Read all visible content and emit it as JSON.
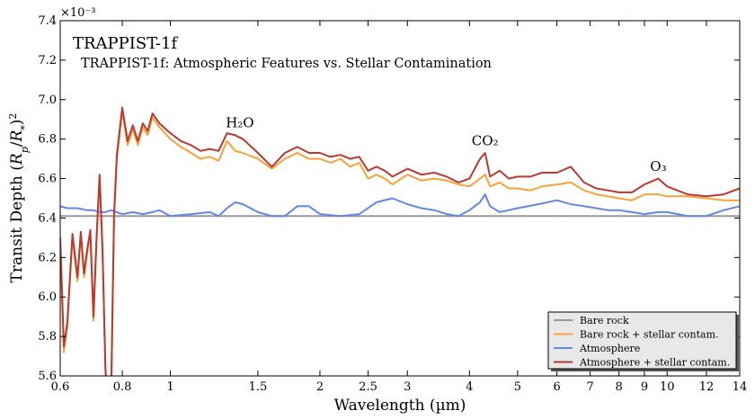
{
  "chart_data": {
    "type": "line",
    "title": "TRAPPIST-1f",
    "subtitle": "TRAPPIST-1f: Atmospheric Features vs. Stellar Contamination",
    "xlabel": "Wavelength (µm)",
    "ylabel": "Transit Depth (R_p/R_*)^2",
    "y_multiplier": "×10⁻³",
    "x_scale": "log",
    "xlim": [
      0.6,
      14
    ],
    "ylim": [
      5.6,
      7.4
    ],
    "x_ticks": [
      0.6,
      0.8,
      1,
      1.5,
      2,
      2.5,
      3,
      4,
      5,
      6,
      7,
      8,
      9,
      10,
      12,
      14
    ],
    "x_tick_labels": [
      "0.6",
      "0.8",
      "1",
      "1.5",
      "2",
      "2.5",
      "3",
      "4",
      "5",
      "6",
      "7",
      "8",
      "9",
      "10",
      "12",
      "14"
    ],
    "y_ticks": [
      5.6,
      5.8,
      6.0,
      6.2,
      6.4,
      6.6,
      6.8,
      7.0,
      7.2,
      7.4
    ],
    "y_tick_labels": [
      "5.6",
      "5.8",
      "6.0",
      "6.2",
      "6.4",
      "6.6",
      "6.8",
      "7.0",
      "7.2",
      "7.4"
    ],
    "grid": false,
    "legend_position": "bottom-right",
    "annotations": [
      {
        "label": "H₂O",
        "x": 1.38,
        "y": 6.86
      },
      {
        "label": "CO₂",
        "x": 4.3,
        "y": 6.77
      },
      {
        "label": "O₃",
        "x": 9.6,
        "y": 6.64
      }
    ],
    "series": [
      {
        "name": "Bare rock",
        "color": "#999999",
        "x": [
          0.6,
          14
        ],
        "y": [
          6.41,
          6.41
        ]
      },
      {
        "name": "Bare rock + stellar contam.",
        "color": "#f7a23a",
        "x": [
          0.6,
          0.61,
          0.62,
          0.635,
          0.65,
          0.66,
          0.67,
          0.68,
          0.69,
          0.7,
          0.71,
          0.72,
          0.73,
          0.74,
          0.75,
          0.76,
          0.77,
          0.78,
          0.79,
          0.8,
          0.82,
          0.84,
          0.86,
          0.88,
          0.9,
          0.92,
          0.95,
          1.0,
          1.05,
          1.1,
          1.15,
          1.2,
          1.25,
          1.3,
          1.35,
          1.4,
          1.5,
          1.6,
          1.7,
          1.8,
          1.9,
          2.0,
          2.1,
          2.2,
          2.3,
          2.4,
          2.5,
          2.6,
          2.7,
          2.8,
          3.0,
          3.2,
          3.4,
          3.6,
          3.8,
          4.0,
          4.2,
          4.3,
          4.4,
          4.6,
          4.8,
          5.0,
          5.3,
          5.6,
          6.0,
          6.4,
          6.8,
          7.2,
          7.6,
          8.0,
          8.5,
          9.0,
          9.6,
          10.0,
          11.0,
          12.0,
          13.0,
          14.0
        ],
        "y": [
          6.28,
          5.72,
          5.85,
          6.3,
          6.08,
          6.31,
          6.1,
          6.22,
          6.32,
          5.88,
          6.28,
          6.6,
          6.22,
          5.62,
          5.4,
          5.5,
          6.4,
          6.7,
          6.82,
          6.94,
          6.77,
          6.85,
          6.77,
          6.86,
          6.82,
          6.91,
          6.86,
          6.8,
          6.76,
          6.73,
          6.7,
          6.71,
          6.69,
          6.79,
          6.74,
          6.73,
          6.7,
          6.65,
          6.7,
          6.73,
          6.7,
          6.7,
          6.68,
          6.7,
          6.66,
          6.68,
          6.6,
          6.62,
          6.6,
          6.57,
          6.62,
          6.59,
          6.6,
          6.59,
          6.57,
          6.56,
          6.6,
          6.62,
          6.56,
          6.58,
          6.55,
          6.55,
          6.54,
          6.56,
          6.57,
          6.58,
          6.54,
          6.52,
          6.51,
          6.5,
          6.49,
          6.52,
          6.52,
          6.51,
          6.51,
          6.5,
          6.49,
          6.49
        ]
      },
      {
        "name": "Atmosphere",
        "color": "#6488e0",
        "x": [
          0.6,
          0.62,
          0.65,
          0.68,
          0.7,
          0.72,
          0.74,
          0.76,
          0.78,
          0.8,
          0.84,
          0.88,
          0.92,
          0.95,
          1.0,
          1.1,
          1.2,
          1.25,
          1.3,
          1.35,
          1.4,
          1.5,
          1.6,
          1.7,
          1.8,
          1.9,
          2.0,
          2.2,
          2.4,
          2.6,
          2.8,
          3.0,
          3.2,
          3.4,
          3.6,
          3.8,
          4.0,
          4.2,
          4.3,
          4.4,
          4.6,
          5.0,
          5.5,
          6.0,
          6.4,
          6.8,
          7.2,
          7.6,
          8.0,
          8.5,
          9.0,
          9.6,
          10.0,
          11.0,
          12.0,
          13.0,
          14.0
        ],
        "y": [
          6.46,
          6.45,
          6.45,
          6.44,
          6.44,
          6.43,
          6.43,
          6.44,
          6.43,
          6.42,
          6.43,
          6.42,
          6.43,
          6.44,
          6.41,
          6.42,
          6.43,
          6.41,
          6.45,
          6.48,
          6.47,
          6.43,
          6.41,
          6.41,
          6.46,
          6.46,
          6.42,
          6.41,
          6.42,
          6.48,
          6.5,
          6.47,
          6.45,
          6.44,
          6.42,
          6.41,
          6.44,
          6.48,
          6.52,
          6.46,
          6.43,
          6.45,
          6.47,
          6.49,
          6.47,
          6.46,
          6.45,
          6.44,
          6.44,
          6.43,
          6.42,
          6.43,
          6.43,
          6.41,
          6.41,
          6.44,
          6.46
        ]
      },
      {
        "name": "Atmosphere + stellar contam.",
        "color": "#b83a32",
        "x": [
          0.6,
          0.61,
          0.62,
          0.635,
          0.65,
          0.66,
          0.67,
          0.68,
          0.69,
          0.7,
          0.71,
          0.72,
          0.73,
          0.74,
          0.75,
          0.76,
          0.77,
          0.78,
          0.79,
          0.8,
          0.82,
          0.84,
          0.86,
          0.88,
          0.9,
          0.92,
          0.95,
          1.0,
          1.05,
          1.1,
          1.15,
          1.2,
          1.25,
          1.3,
          1.35,
          1.4,
          1.5,
          1.6,
          1.7,
          1.8,
          1.9,
          2.0,
          2.1,
          2.2,
          2.3,
          2.4,
          2.5,
          2.6,
          2.7,
          2.8,
          3.0,
          3.2,
          3.4,
          3.6,
          3.8,
          4.0,
          4.2,
          4.3,
          4.4,
          4.6,
          4.8,
          5.0,
          5.3,
          5.6,
          6.0,
          6.4,
          6.8,
          7.2,
          7.6,
          8.0,
          8.5,
          9.0,
          9.6,
          10.0,
          11.0,
          12.0,
          13.0,
          14.0
        ],
        "y": [
          6.3,
          5.75,
          5.87,
          6.32,
          6.1,
          6.33,
          6.12,
          6.24,
          6.34,
          5.9,
          6.3,
          6.62,
          6.24,
          5.64,
          5.42,
          5.52,
          6.42,
          6.72,
          6.84,
          6.96,
          6.79,
          6.87,
          6.79,
          6.88,
          6.84,
          6.93,
          6.88,
          6.83,
          6.79,
          6.77,
          6.74,
          6.75,
          6.74,
          6.83,
          6.82,
          6.8,
          6.73,
          6.66,
          6.73,
          6.76,
          6.73,
          6.73,
          6.71,
          6.72,
          6.7,
          6.71,
          6.64,
          6.66,
          6.64,
          6.61,
          6.65,
          6.62,
          6.63,
          6.61,
          6.58,
          6.6,
          6.7,
          6.73,
          6.61,
          6.64,
          6.6,
          6.61,
          6.61,
          6.63,
          6.63,
          6.66,
          6.58,
          6.55,
          6.54,
          6.53,
          6.53,
          6.57,
          6.6,
          6.56,
          6.52,
          6.51,
          6.52,
          6.55
        ]
      }
    ]
  }
}
